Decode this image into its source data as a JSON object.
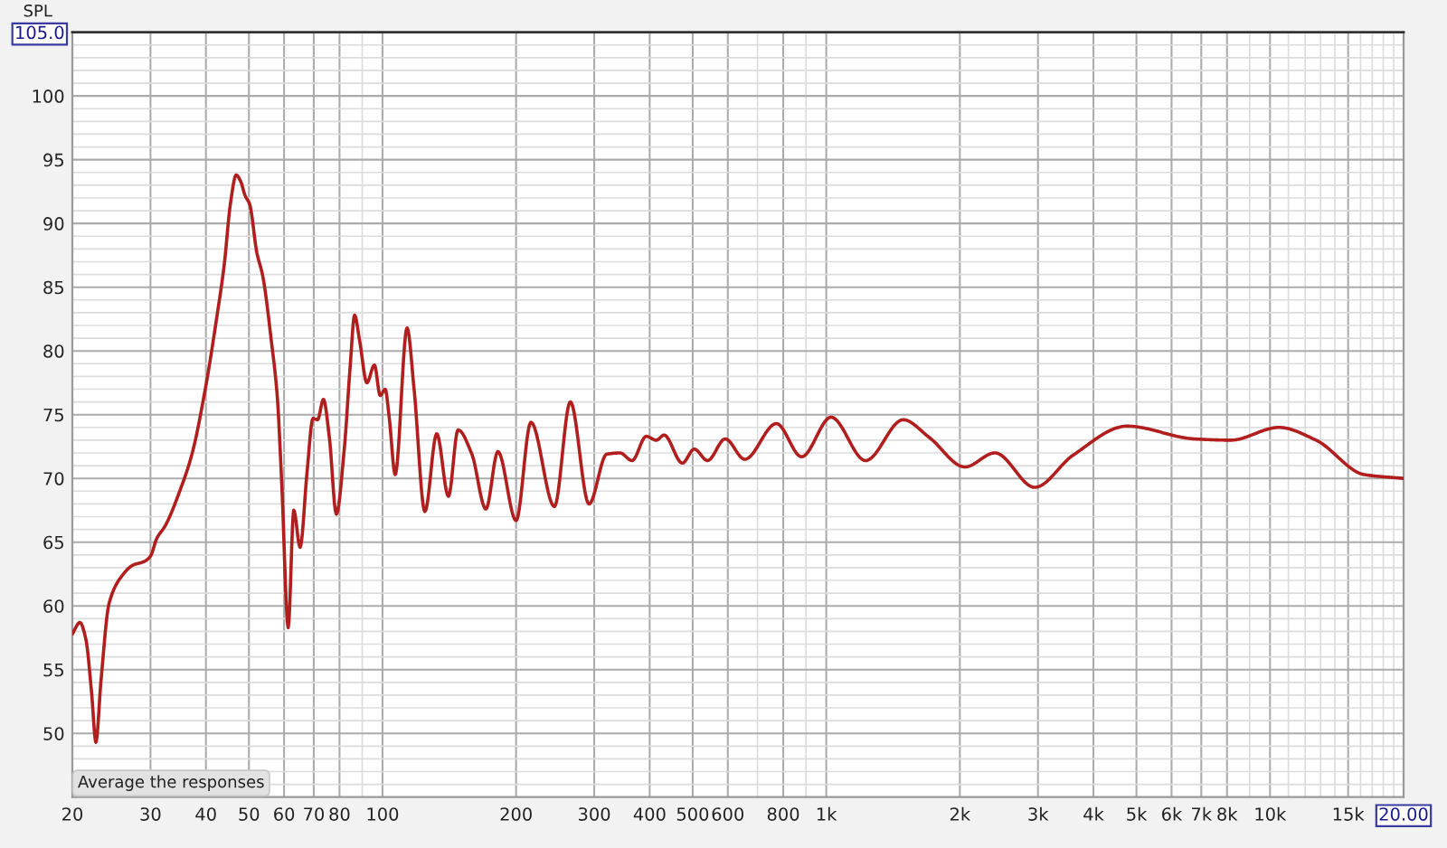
{
  "chart_data": {
    "type": "line",
    "ylabel": "SPL",
    "log": "x",
    "grid": true,
    "line_style": "solid",
    "annotations": [
      "Average the responses",
      "20.00"
    ],
    "xlim": [
      20,
      20000
    ],
    "ylim": [
      45,
      105
    ],
    "xticks": [
      20,
      30,
      40,
      50,
      60,
      70,
      80,
      {
        "value": 90,
        "label": null
      },
      100,
      200,
      300,
      400,
      500,
      600,
      {
        "value": 700,
        "label": null
      },
      800,
      {
        "value": 900,
        "label": null
      },
      {
        "value": 1000,
        "label": "1k"
      },
      {
        "value": 2000,
        "label": "2k"
      },
      {
        "value": 3000,
        "label": "3k"
      },
      {
        "value": 4000,
        "label": "4k"
      },
      {
        "value": 5000,
        "label": "5k"
      },
      {
        "value": 6000,
        "label": "6k"
      },
      {
        "value": 7000,
        "label": "7k"
      },
      {
        "value": 8000,
        "label": "8k"
      },
      {
        "value": 9000,
        "label": null
      },
      {
        "value": 10000,
        "label": "10k"
      },
      {
        "value": 11000,
        "label": null
      },
      {
        "value": 12000,
        "label": null
      },
      {
        "value": 13000,
        "label": null
      },
      {
        "value": 14000,
        "label": null
      },
      {
        "value": 15000,
        "label": "15k"
      },
      {
        "value": 16000,
        "label": null
      },
      {
        "value": 17000,
        "label": null
      },
      {
        "value": 18000,
        "label": null
      },
      {
        "value": 19000,
        "label": null
      }
    ],
    "yticks": [
      {
        "value": 46,
        "label": null
      },
      {
        "value": 47,
        "label": null
      },
      {
        "value": 48,
        "label": null
      },
      {
        "value": 49,
        "label": null
      },
      50,
      {
        "value": 51,
        "label": null
      },
      {
        "value": 52,
        "label": null
      },
      {
        "value": 53,
        "label": null
      },
      {
        "value": 54,
        "label": null
      },
      55,
      {
        "value": 56,
        "label": null
      },
      {
        "value": 57,
        "label": null
      },
      {
        "value": 58,
        "label": null
      },
      {
        "value": 59,
        "label": null
      },
      60,
      {
        "value": 61,
        "label": null
      },
      {
        "value": 62,
        "label": null
      },
      {
        "value": 63,
        "label": null
      },
      {
        "value": 64,
        "label": null
      },
      65,
      {
        "value": 66,
        "label": null
      },
      {
        "value": 67,
        "label": null
      },
      {
        "value": 68,
        "label": null
      },
      {
        "value": 69,
        "label": null
      },
      70,
      {
        "value": 71,
        "label": null
      },
      {
        "value": 72,
        "label": null
      },
      {
        "value": 73,
        "label": null
      },
      {
        "value": 74,
        "label": null
      },
      75,
      {
        "value": 76,
        "label": null
      },
      {
        "value": 77,
        "label": null
      },
      {
        "value": 78,
        "label": null
      },
      {
        "value": 79,
        "label": null
      },
      80,
      {
        "value": 81,
        "label": null
      },
      {
        "value": 82,
        "label": null
      },
      {
        "value": 83,
        "label": null
      },
      {
        "value": 84,
        "label": null
      },
      85,
      {
        "value": 86,
        "label": null
      },
      {
        "value": 87,
        "label": null
      },
      {
        "value": 88,
        "label": null
      },
      {
        "value": 89,
        "label": null
      },
      90,
      {
        "value": 91,
        "label": null
      },
      {
        "value": 92,
        "label": null
      },
      {
        "value": 93,
        "label": null
      },
      {
        "value": 94,
        "label": null
      },
      95,
      {
        "value": 96,
        "label": null
      },
      {
        "value": 97,
        "label": null
      },
      {
        "value": 98,
        "label": null
      },
      {
        "value": 99,
        "label": null
      },
      100,
      {
        "value": 101,
        "label": null
      },
      {
        "value": 102,
        "label": null
      },
      {
        "value": 103,
        "label": null
      },
      {
        "value": 104,
        "label": null
      },
      {
        "value": 105,
        "label": "105.0"
      }
    ],
    "x": [
      20,
      20.8,
      21.45,
      22.1,
      22.6,
      23.2,
      24.2,
      25.8,
      27.4,
      29.1,
      30,
      31,
      32.4,
      35,
      37.2,
      40,
      42.3,
      44,
      45.4,
      46.8,
      47.9,
      49,
      50.2,
      52.1,
      53.7,
      56.2,
      57.9,
      59.3,
      61.3,
      63.1,
      65.2,
      67.6,
      69.7,
      71.4,
      73.6,
      75.9,
      78.7,
      82,
      84.6,
      86.5,
      88.9,
      92.2,
      95.9,
      98.8,
      101.4,
      103.6,
      106.8,
      113.6,
      117.8,
      124.6,
      132.5,
      140.8,
      148,
      159,
      171,
      182,
      200,
      216,
      244,
      265,
      292,
      320,
      343,
      365,
      393,
      414,
      431,
      474,
      504,
      540,
      592,
      655,
      772,
      880,
      1025,
      1226,
      1490,
      1708,
      2053,
      2400,
      2950,
      3592,
      4760,
      6740,
      8150,
      10470,
      12700,
      16300,
      20000
    ],
    "series": [
      {
        "color": "#b01e1e",
        "values": [
          57.8,
          58.7,
          57.4,
          53.2,
          49.3,
          54.1,
          60.2,
          62.3,
          63.2,
          63.5,
          63.9,
          65.3,
          66.3,
          69.1,
          71.9,
          77.3,
          82.6,
          86.8,
          91.5,
          93.8,
          93.3,
          92.2,
          91.5,
          87.7,
          85.9,
          80.7,
          76.5,
          69.5,
          58.3,
          67.5,
          64.6,
          70.5,
          74.7,
          74.6,
          76.2,
          73.2,
          67.2,
          72.3,
          78.9,
          82.8,
          80.7,
          77.5,
          78.9,
          76.5,
          77.0,
          74.7,
          70.3,
          81.8,
          77.0,
          67.4,
          73.5,
          68.6,
          73.8,
          71.9,
          67.6,
          72.1,
          66.7,
          74.4,
          67.8,
          76.0,
          68.0,
          71.9,
          72.0,
          71.4,
          73.3,
          73.0,
          73.4,
          71.2,
          72.3,
          71.4,
          73.1,
          71.5,
          74.3,
          71.7,
          74.8,
          71.4,
          74.6,
          73.2,
          70.9,
          72.0,
          69.3,
          71.8,
          74.1,
          73.1,
          73.0,
          74.0,
          73.0,
          70.3,
          70.0
        ]
      }
    ]
  }
}
